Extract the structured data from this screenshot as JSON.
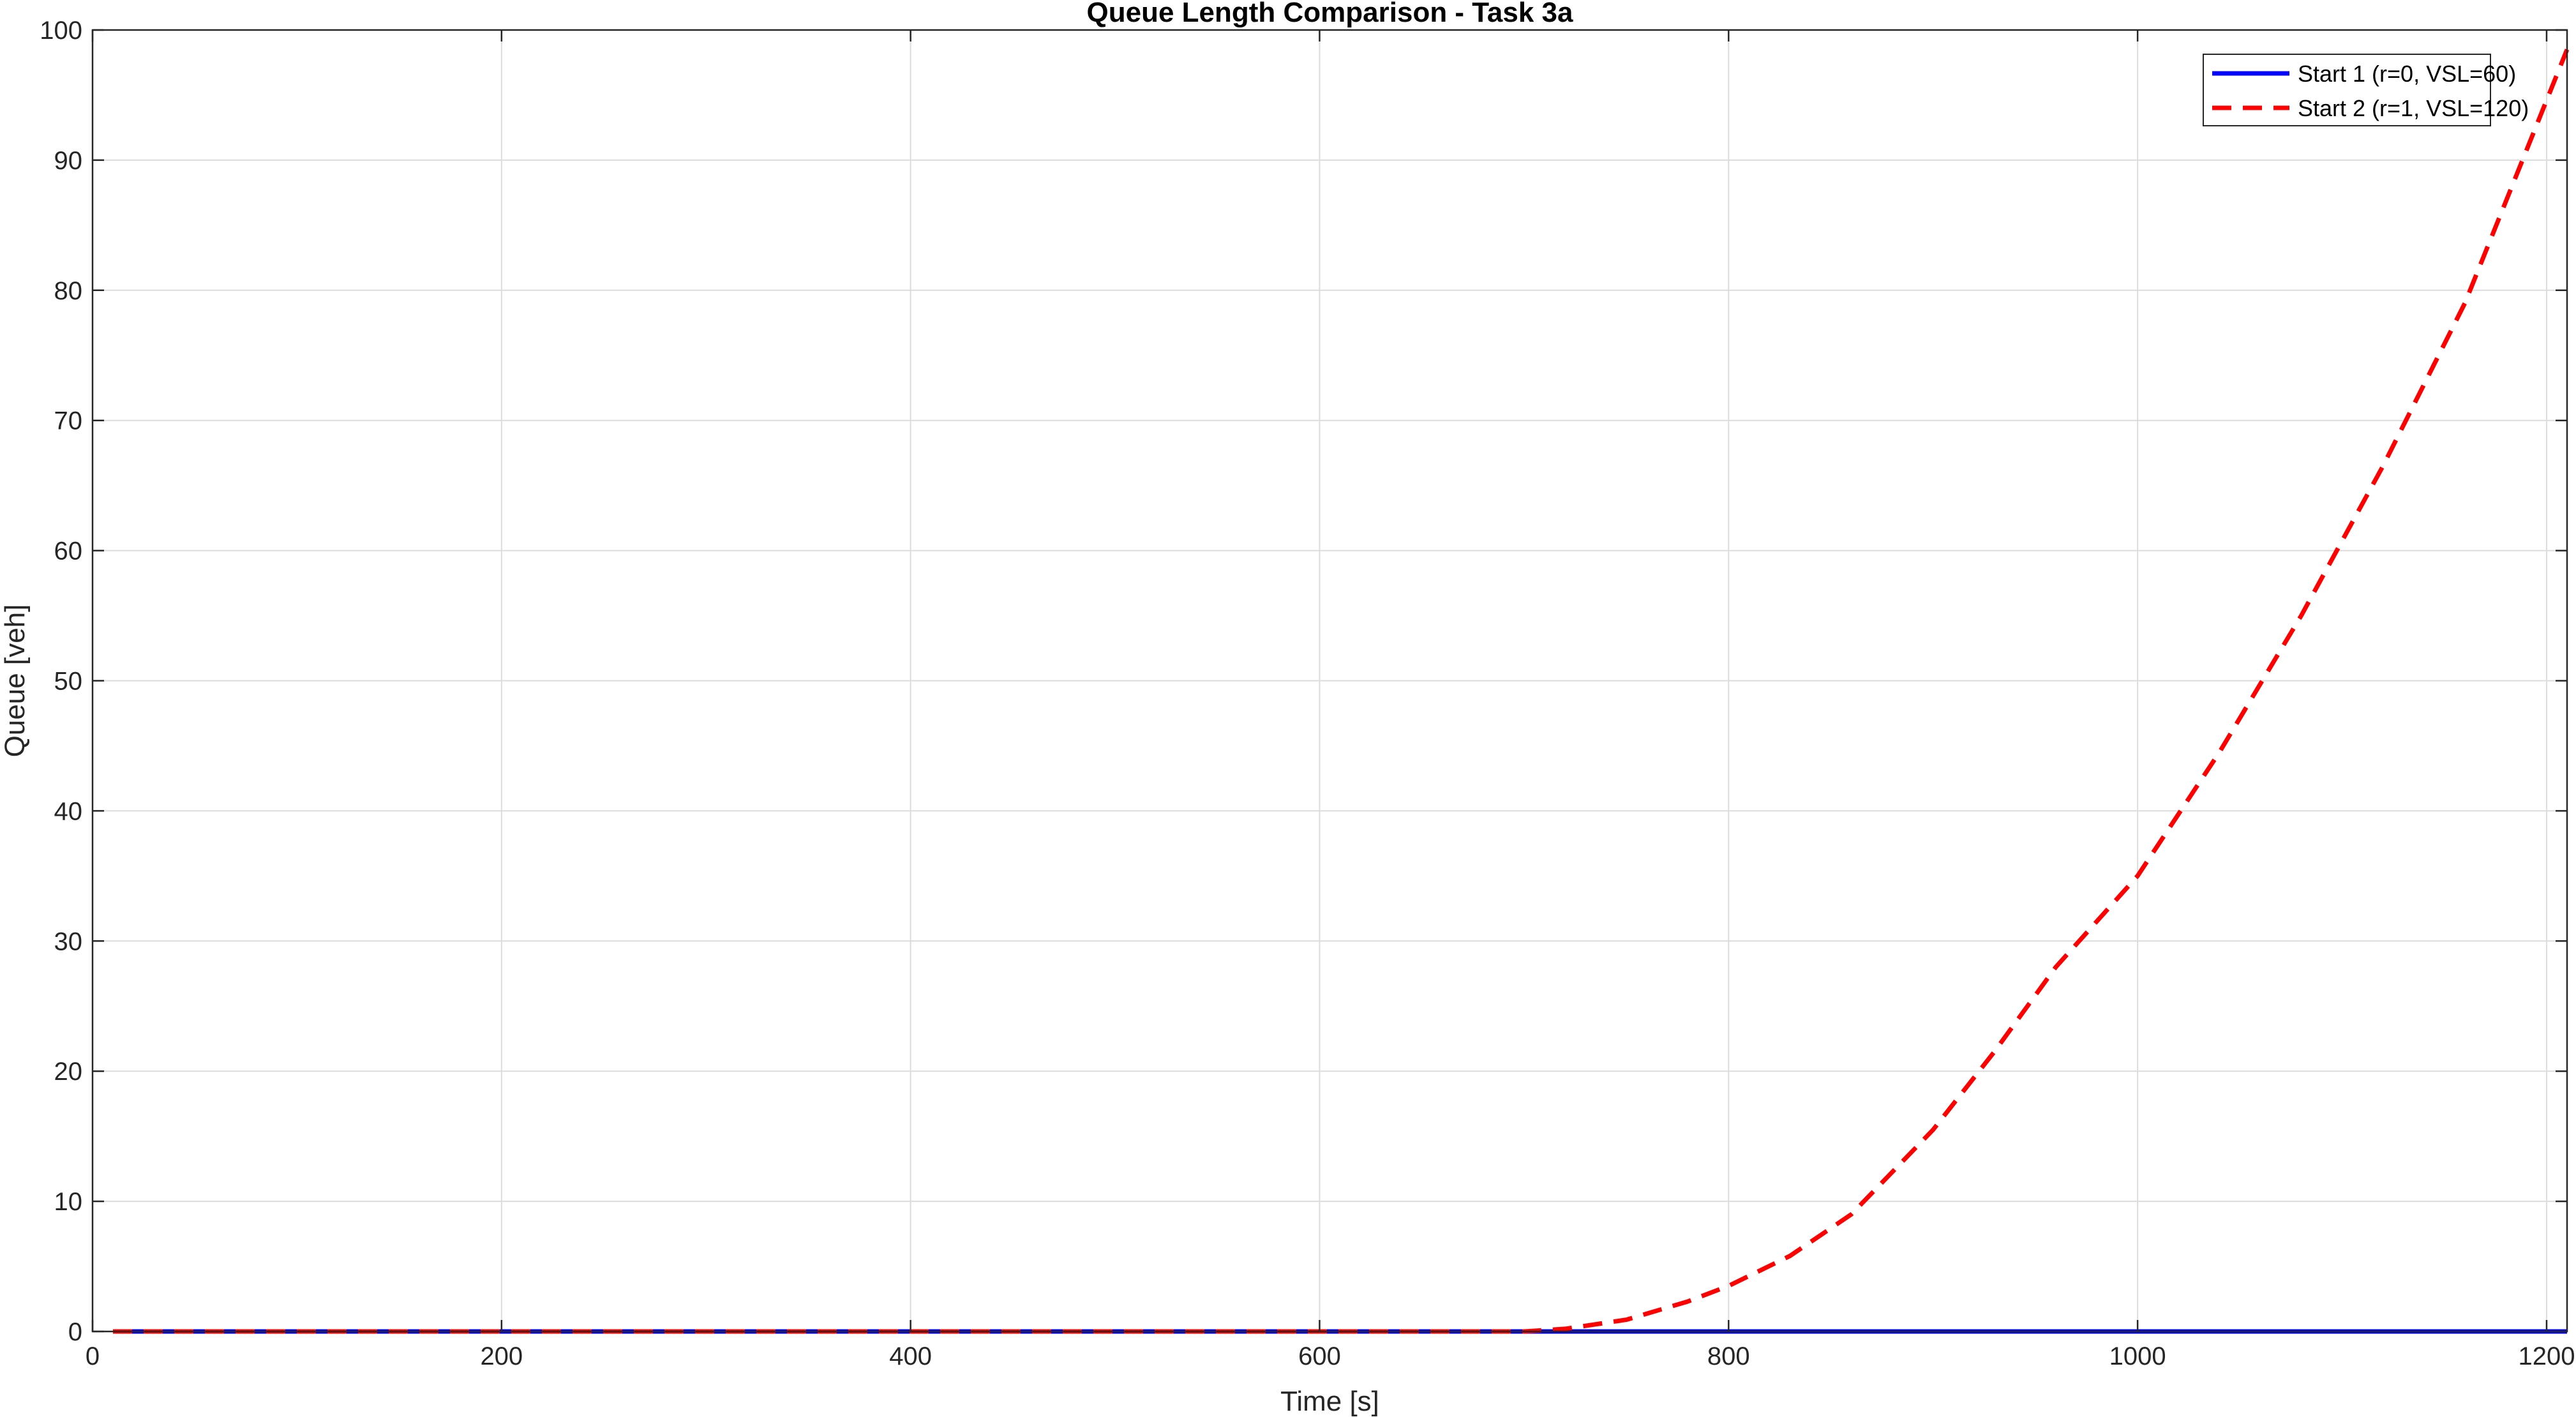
{
  "chart_data": {
    "type": "line",
    "title": "Queue Length Comparison - Task 3a",
    "xlabel": "Time [s]",
    "ylabel": "Queue [veh]",
    "xlim": [
      0,
      1210
    ],
    "ylim": [
      0,
      100
    ],
    "xticks": [
      0,
      200,
      400,
      600,
      800,
      1000,
      1200
    ],
    "yticks": [
      0,
      10,
      20,
      30,
      40,
      50,
      60,
      70,
      80,
      90,
      100
    ],
    "grid": true,
    "legend_position": "top-right",
    "series": [
      {
        "name": "Start 1 (r=0, VSL=60)",
        "color": "#0000ff",
        "style": "solid",
        "x": [
          10,
          200,
          400,
          600,
          700,
          800,
          900,
          1000,
          1100,
          1210
        ],
        "y": [
          0,
          0,
          0,
          0,
          0,
          0,
          0,
          0,
          0,
          0
        ]
      },
      {
        "name": "Start 2 (r=1, VSL=120)",
        "color": "#ff0000",
        "style": "dashed",
        "x": [
          10,
          200,
          400,
          600,
          700,
          720,
          750,
          780,
          800,
          830,
          860,
          900,
          930,
          960,
          1000,
          1040,
          1080,
          1120,
          1160,
          1210
        ],
        "y": [
          0,
          0,
          0,
          0,
          0,
          0.2,
          0.9,
          2.3,
          3.5,
          5.8,
          9.0,
          15.5,
          21.5,
          28.0,
          35.0,
          44.5,
          55.0,
          66.5,
          79.0,
          98.5
        ]
      }
    ]
  }
}
